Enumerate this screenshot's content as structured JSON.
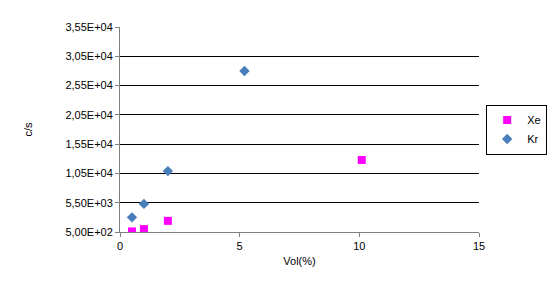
{
  "chart_data": {
    "type": "scatter",
    "xlabel": "Vol(%)",
    "ylabel": "c/s",
    "series": [
      {
        "name": "Xe",
        "color": "#ff00ff",
        "marker": "square",
        "x": [
          0.5,
          1.0,
          2.0,
          10.1
        ],
        "values": [
          600,
          1000,
          2400,
          12800
        ]
      },
      {
        "name": "Kr",
        "color": "#4a7ebb",
        "marker": "diamond",
        "x": [
          0.5,
          1.0,
          2.0,
          5.2
        ],
        "values": [
          3000,
          5300,
          10900,
          28000
        ]
      }
    ],
    "xlim": [
      0,
      15
    ],
    "xticks": [
      0,
      5,
      10,
      15
    ],
    "ylim": [
      500,
      35500
    ],
    "yticks": [
      {
        "value": 500,
        "label": "5,00E+02"
      },
      {
        "value": 5500,
        "label": "5,50E+03"
      },
      {
        "value": 10500,
        "label": "1,05E+04"
      },
      {
        "value": 15500,
        "label": "1,55E+04"
      },
      {
        "value": 20500,
        "label": "2,05E+04"
      },
      {
        "value": 25500,
        "label": "2,55E+04"
      },
      {
        "value": 30500,
        "label": "3,05E+04"
      },
      {
        "value": 35500,
        "label": "3,55E+04"
      }
    ],
    "grid": "y",
    "legend": "right"
  }
}
